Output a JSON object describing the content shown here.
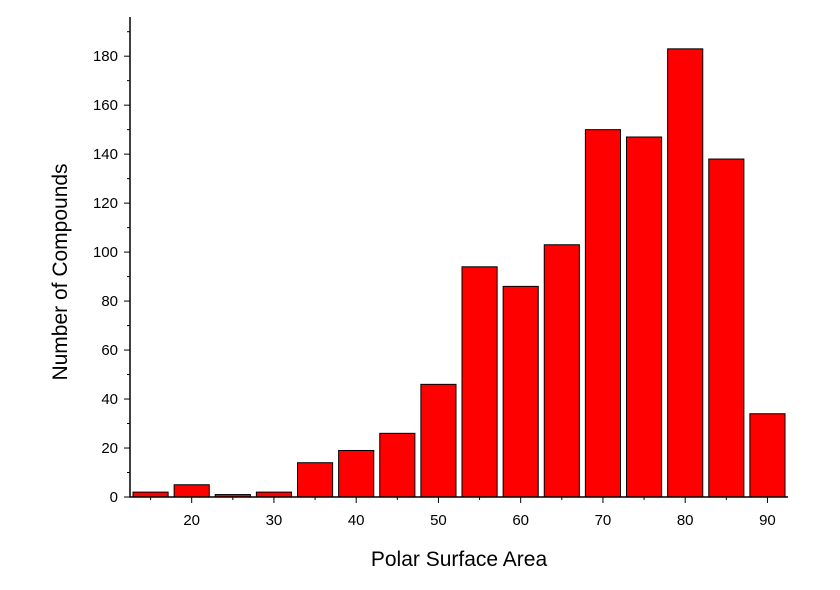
{
  "chart_data": {
    "type": "bar",
    "title": "",
    "xlabel": "Polar Surface Area",
    "ylabel": "Number of Compounds",
    "bar_color": "#ff0000",
    "bar_edge_color": "#000000",
    "xlim": [
      12.5,
      92.5
    ],
    "ylim": [
      0,
      196
    ],
    "bin_width": 5,
    "x": [
      15,
      20,
      25,
      30,
      35,
      40,
      45,
      50,
      55,
      60,
      65,
      70,
      75,
      80,
      85,
      90
    ],
    "values": [
      2,
      5,
      1,
      2,
      14,
      19,
      26,
      46,
      94,
      86,
      103,
      150,
      147,
      183,
      138,
      34
    ],
    "xticks": [
      20,
      30,
      40,
      50,
      60,
      70,
      80,
      90
    ],
    "yticks": [
      0,
      20,
      40,
      60,
      80,
      100,
      120,
      140,
      160,
      180
    ],
    "grid": false,
    "legend": "none"
  }
}
